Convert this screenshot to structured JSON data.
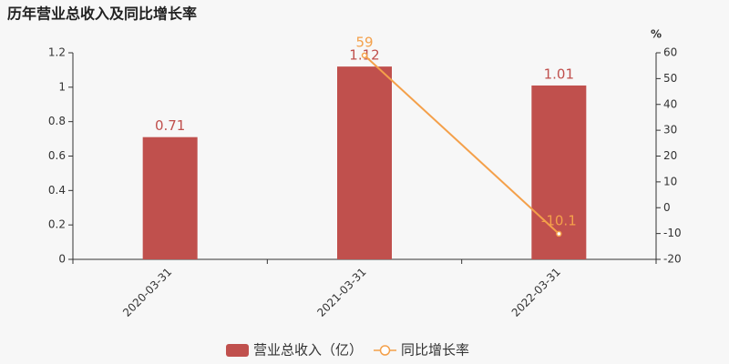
{
  "chart_data": {
    "type": "bar",
    "title": "历年营业总收入及同比增长率",
    "categories": [
      "2020-03-31",
      "2021-03-31",
      "2022-03-31"
    ],
    "series": [
      {
        "name": "营业总收入（亿）",
        "type": "bar",
        "color": "#c0504d",
        "values": [
          0.71,
          1.12,
          1.01
        ]
      },
      {
        "name": "同比增长率",
        "type": "line",
        "axis": "y2",
        "color": "#f4a04a",
        "values": [
          null,
          59,
          -10.1
        ]
      }
    ],
    "ylim": [
      0,
      1.2
    ],
    "yticks": [
      0,
      0.2,
      0.4,
      0.6,
      0.8,
      1,
      1.2
    ],
    "y2label": "%",
    "y2lim": [
      -20,
      60
    ],
    "y2ticks": [
      -20,
      -10,
      0,
      10,
      20,
      30,
      40,
      50,
      60
    ],
    "legend": "bottom"
  }
}
